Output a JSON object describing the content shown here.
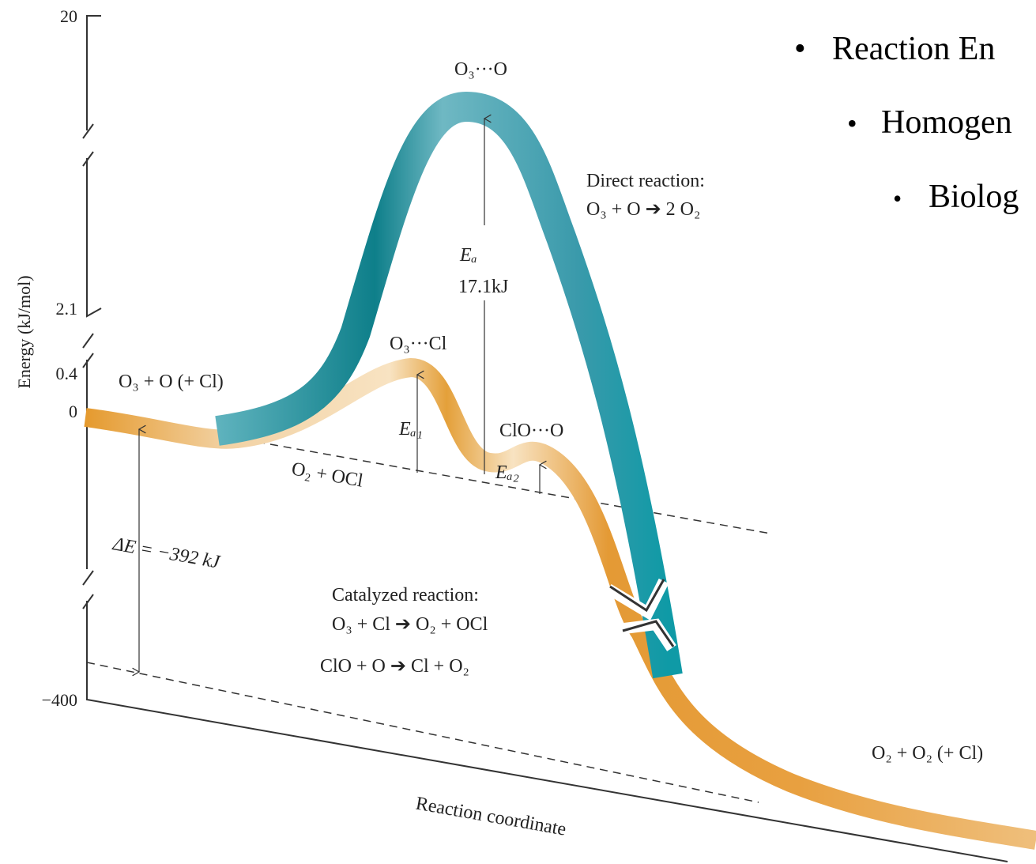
{
  "axis": {
    "ticks": [
      "20",
      "2.1",
      "0.4",
      "0",
      "−400"
    ],
    "y_label": "Energy (kJ/mol)",
    "x_label": "Reaction coordinate"
  },
  "labels": {
    "direct_ts": "O₃···O",
    "direct_title": "Direct reaction:",
    "direct_eq": "O₃ + O ➔ 2 O₂",
    "ea": "Eₐ",
    "ea_value": "17.1kJ",
    "cat_ts1": "O₃···Cl",
    "reactants": "O₃ + O (+ Cl)",
    "ea1": "Eₐ₁",
    "cat_ts2": "ClO···O",
    "ea2": "Eₐ₂",
    "intermediate": "O₂ + OCl",
    "delta_e": "ΔE = −392 kJ",
    "cat_title": "Catalyzed reaction:",
    "cat_eq1": "O₃ + Cl ➔ O₂ + OCl",
    "cat_eq2": "ClO + O ➔ Cl + O₂",
    "products": "O₂ + O₂  (+ Cl)"
  },
  "bullets": [
    "Reaction En",
    "Homogen",
    "Biolog"
  ]
}
